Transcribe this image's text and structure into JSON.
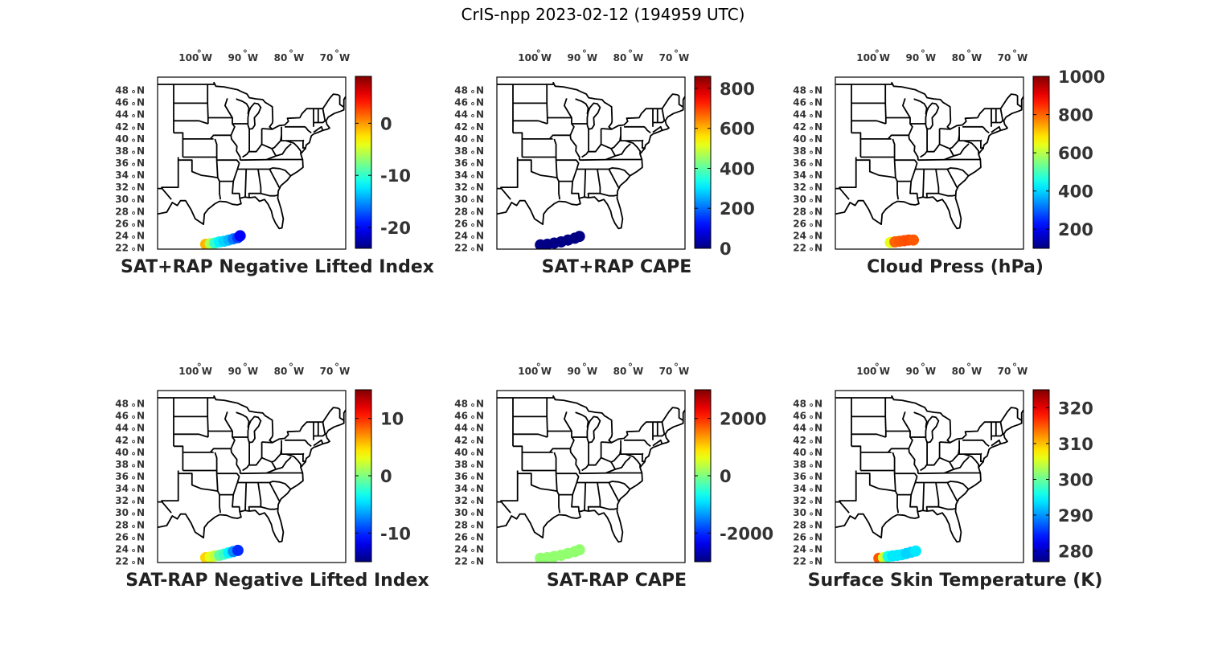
{
  "title": "CrIS-npp 2023-02-12 (194959 UTC)",
  "lon_ticks": [
    "100",
    "90",
    "80",
    "70"
  ],
  "lon_suffix": " W",
  "lat_ticks": [
    "48",
    "46",
    "44",
    "42",
    "40",
    "38",
    "36",
    "34",
    "32",
    "30",
    "28",
    "26",
    "24",
    "22"
  ],
  "lat_suffix": " N",
  "degree_symbol": "°",
  "chart_data": [
    {
      "type": "scatter",
      "title": "SAT+RAP Negative Lifted Index",
      "colorbar": {
        "range": [
          -24,
          9
        ],
        "ticks": [
          0,
          -10,
          -20
        ],
        "tick_labels": [
          "0",
          "-10",
          "-20"
        ],
        "colormap": "jet"
      },
      "points": [
        {
          "lon": -97.0,
          "lat": 22.6,
          "value": -1
        },
        {
          "lon": -96.0,
          "lat": 22.7,
          "value": -6
        },
        {
          "lon": -95.0,
          "lat": 22.8,
          "value": -10
        },
        {
          "lon": -94.0,
          "lat": 23.0,
          "value": -12
        },
        {
          "lon": -93.0,
          "lat": 23.1,
          "value": -13
        },
        {
          "lon": -92.0,
          "lat": 23.3,
          "value": -14
        },
        {
          "lon": -91.0,
          "lat": 23.5,
          "value": -16
        },
        {
          "lon": -90.0,
          "lat": 23.7,
          "value": -18
        },
        {
          "lon": -89.5,
          "lat": 24.0,
          "value": -20
        }
      ]
    },
    {
      "type": "scatter",
      "title": "SAT+RAP CAPE",
      "colorbar": {
        "range": [
          0,
          860
        ],
        "ticks": [
          800,
          600,
          400,
          200,
          0
        ],
        "tick_labels": [
          "800",
          "600",
          "400",
          "200",
          "0"
        ],
        "colormap": "jet"
      },
      "points": [
        {
          "lon": -98.0,
          "lat": 22.5,
          "value": 5
        },
        {
          "lon": -96.5,
          "lat": 22.6,
          "value": 5
        },
        {
          "lon": -95.0,
          "lat": 22.8,
          "value": 5
        },
        {
          "lon": -93.5,
          "lat": 23.0,
          "value": 5
        },
        {
          "lon": -92.0,
          "lat": 23.3,
          "value": 5
        },
        {
          "lon": -90.5,
          "lat": 23.6,
          "value": 5
        },
        {
          "lon": -89.5,
          "lat": 23.9,
          "value": 5
        }
      ]
    },
    {
      "type": "scatter",
      "title": "Cloud Press (hPa)",
      "colorbar": {
        "range": [
          100,
          1000
        ],
        "ticks": [
          1000,
          800,
          600,
          400,
          200
        ],
        "tick_labels": [
          "1000",
          "800",
          "600",
          "400",
          "200"
        ],
        "colormap": "jet"
      },
      "points": [
        {
          "lon": -95.5,
          "lat": 22.9,
          "value": 640
        },
        {
          "lon": -94.5,
          "lat": 23.0,
          "value": 800
        },
        {
          "lon": -93.5,
          "lat": 23.1,
          "value": 810
        },
        {
          "lon": -92.5,
          "lat": 23.2,
          "value": 815
        },
        {
          "lon": -91.5,
          "lat": 23.3,
          "value": 820
        },
        {
          "lon": -90.5,
          "lat": 23.3,
          "value": 810
        }
      ]
    },
    {
      "type": "scatter",
      "title": "SAT-RAP Negative Lifted Index",
      "colorbar": {
        "range": [
          -15,
          15
        ],
        "ticks": [
          10,
          0,
          -10
        ],
        "tick_labels": [
          "10",
          "0",
          "-10"
        ],
        "colormap": "jet"
      },
      "points": [
        {
          "lon": -97.0,
          "lat": 22.6,
          "value": 5
        },
        {
          "lon": -96.0,
          "lat": 22.7,
          "value": 3
        },
        {
          "lon": -95.0,
          "lat": 22.9,
          "value": 2
        },
        {
          "lon": -94.0,
          "lat": 23.0,
          "value": -1
        },
        {
          "lon": -93.0,
          "lat": 23.2,
          "value": -2
        },
        {
          "lon": -92.0,
          "lat": 23.4,
          "value": -4
        },
        {
          "lon": -91.0,
          "lat": 23.6,
          "value": -7
        },
        {
          "lon": -90.0,
          "lat": 23.8,
          "value": -10
        }
      ]
    },
    {
      "type": "scatter",
      "title": "SAT-RAP CAPE",
      "colorbar": {
        "range": [
          -3000,
          3000
        ],
        "ticks": [
          2000,
          0,
          -2000
        ],
        "tick_labels": [
          "2000",
          "0",
          "-2000"
        ],
        "colormap": "jet"
      },
      "points": [
        {
          "lon": -98.0,
          "lat": 22.5,
          "value": 100
        },
        {
          "lon": -96.5,
          "lat": 22.6,
          "value": 100
        },
        {
          "lon": -95.0,
          "lat": 22.8,
          "value": 100
        },
        {
          "lon": -93.5,
          "lat": 23.0,
          "value": 100
        },
        {
          "lon": -92.0,
          "lat": 23.3,
          "value": 100
        },
        {
          "lon": -90.5,
          "lat": 23.6,
          "value": 100
        },
        {
          "lon": -89.5,
          "lat": 23.9,
          "value": 100
        }
      ]
    },
    {
      "type": "scatter",
      "title": "Surface Skin Temperature (K)",
      "colorbar": {
        "range": [
          277,
          325
        ],
        "ticks": [
          320,
          310,
          300,
          290,
          280
        ],
        "tick_labels": [
          "320",
          "310",
          "300",
          "290",
          "280"
        ],
        "colormap": "jet"
      },
      "points": [
        {
          "lon": -98.0,
          "lat": 22.5,
          "value": 315
        },
        {
          "lon": -97.0,
          "lat": 22.6,
          "value": 305
        },
        {
          "lon": -96.0,
          "lat": 22.8,
          "value": 296
        },
        {
          "lon": -95.0,
          "lat": 22.9,
          "value": 294
        },
        {
          "lon": -94.0,
          "lat": 23.0,
          "value": 294
        },
        {
          "lon": -93.0,
          "lat": 23.1,
          "value": 294
        },
        {
          "lon": -92.0,
          "lat": 23.3,
          "value": 293
        },
        {
          "lon": -91.0,
          "lat": 23.5,
          "value": 293
        },
        {
          "lon": -90.0,
          "lat": 23.7,
          "value": 294
        }
      ]
    }
  ]
}
